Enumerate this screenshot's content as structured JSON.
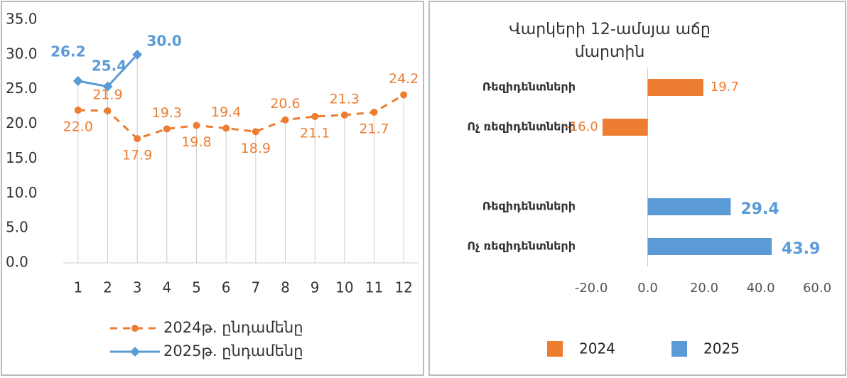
{
  "chart_data": [
    {
      "type": "line",
      "categories": [
        "1",
        "2",
        "3",
        "4",
        "5",
        "6",
        "7",
        "8",
        "9",
        "10",
        "11",
        "12"
      ],
      "ylim": [
        0,
        35
      ],
      "yticks": [
        {
          "value": 0,
          "label": "0.0"
        },
        {
          "value": 5,
          "label": "5.0"
        },
        {
          "value": 10,
          "label": "10.0"
        },
        {
          "value": 15,
          "label": "15.0"
        },
        {
          "value": 20,
          "label": "20.0"
        },
        {
          "value": 25,
          "label": "25.0"
        },
        {
          "value": 30,
          "label": "30.0"
        },
        {
          "value": 35,
          "label": "35.0"
        }
      ],
      "drop_lines": true,
      "series": [
        {
          "name": "2024թ. ընդամենը",
          "color": "#ED7D31",
          "line_style": "dashed",
          "marker": "circle",
          "values": [
            22.0,
            21.9,
            17.9,
            19.3,
            19.8,
            19.4,
            18.9,
            20.6,
            21.1,
            21.3,
            21.7,
            24.2
          ],
          "value_labels": [
            "22.0",
            "21.9",
            "17.9",
            "19.3",
            "19.8",
            "19.4",
            "18.9",
            "20.6",
            "21.1",
            "21.3",
            "21.7",
            "24.2"
          ]
        },
        {
          "name": "2025թ. ընդամենը",
          "color": "#5B9BD5",
          "line_style": "solid",
          "marker": "diamond",
          "values": [
            26.2,
            25.4,
            30.0,
            null,
            null,
            null,
            null,
            null,
            null,
            null,
            null,
            null
          ],
          "value_labels": [
            "26.2",
            "25.4",
            "30.0",
            null,
            null,
            null,
            null,
            null,
            null,
            null,
            null,
            null
          ]
        }
      ]
    },
    {
      "type": "bar",
      "orientation": "horizontal",
      "title": "Վարկերի 12-ամսյա աճը մարտին",
      "categories": [
        "Ռեզիդենտների",
        "Ոչ ռեզիդենտների",
        null,
        "Ռեզիդենտների",
        "Ոչ ռեզիդենտների"
      ],
      "xlim": [
        -20,
        60
      ],
      "xticks": [
        {
          "value": -20,
          "label": "-20.0"
        },
        {
          "value": 0,
          "label": "0.0"
        },
        {
          "value": 20,
          "label": "20.0"
        },
        {
          "value": 40,
          "label": "40.0"
        },
        {
          "value": 60,
          "label": "60.0"
        }
      ],
      "series": [
        {
          "name": "2024",
          "color": "#ED7D31",
          "values": [
            19.7,
            -16.0,
            null,
            null,
            null
          ],
          "value_labels": [
            null,
            "-16.0",
            null,
            null,
            null
          ]
        },
        {
          "name": "2025",
          "color": "#5B9BD5",
          "values": [
            null,
            null,
            null,
            29.4,
            43.9
          ]
        }
      ]
    }
  ]
}
